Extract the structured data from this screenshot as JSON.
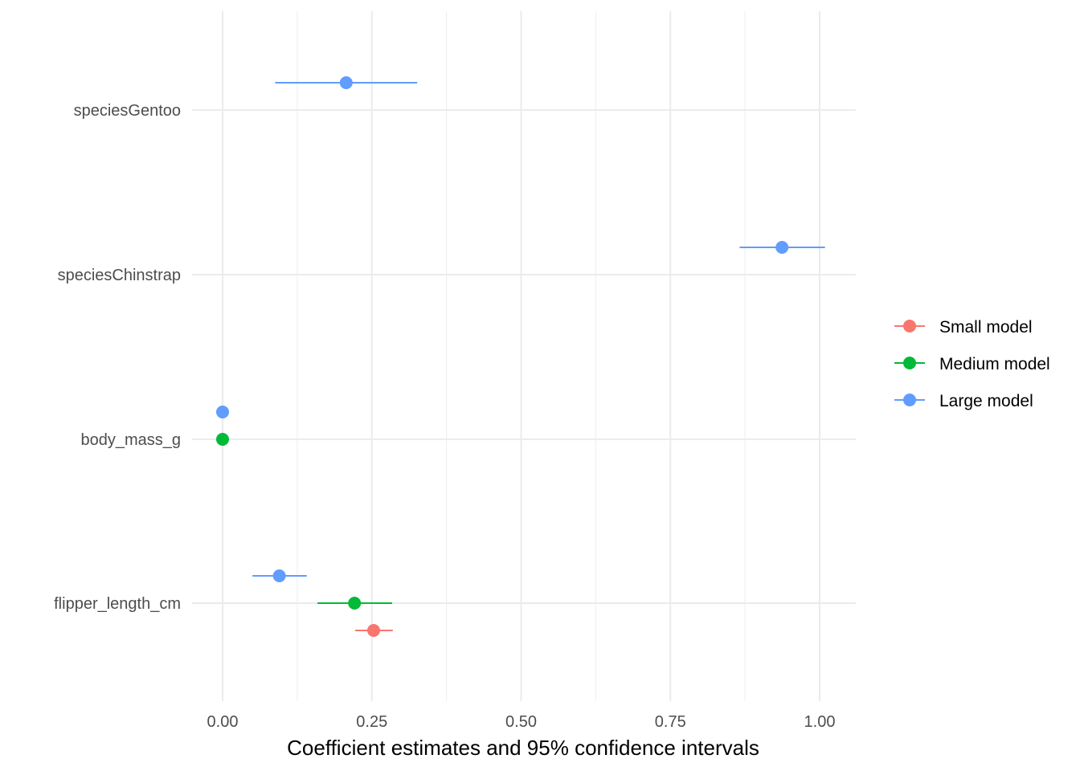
{
  "chart_data": {
    "type": "scatter",
    "subtype": "coefficient-plot",
    "xlabel": "Coefficient estimates and 95% confidence intervals",
    "ylabel": "",
    "xlim": [
      -0.05,
      1.06
    ],
    "x_ticks": [
      0.0,
      0.25,
      0.5,
      0.75,
      1.0
    ],
    "x_tick_labels": [
      "0.00",
      "0.25",
      "0.50",
      "0.75",
      "1.00"
    ],
    "categories": [
      "flipper_length_cm",
      "body_mass_g",
      "speciesChinstrap",
      "speciesGentoo"
    ],
    "grid": true,
    "legend_position": "right",
    "series": [
      {
        "name": "Small model",
        "color": "#F8766D",
        "points": [
          {
            "term": "flipper_length_cm",
            "estimate": 0.253,
            "low": 0.222,
            "high": 0.285
          }
        ]
      },
      {
        "name": "Medium model",
        "color": "#00BA38",
        "points": [
          {
            "term": "flipper_length_cm",
            "estimate": 0.221,
            "low": 0.159,
            "high": 0.284
          },
          {
            "term": "body_mass_g",
            "estimate": 0.0,
            "low": -0.001,
            "high": 0.001
          }
        ]
      },
      {
        "name": "Large model",
        "color": "#619CFF",
        "points": [
          {
            "term": "flipper_length_cm",
            "estimate": 0.095,
            "low": 0.05,
            "high": 0.141
          },
          {
            "term": "body_mass_g",
            "estimate": 0.0,
            "low": -0.001,
            "high": 0.001
          },
          {
            "term": "speciesChinstrap",
            "estimate": 0.937,
            "low": 0.866,
            "high": 1.009
          },
          {
            "term": "speciesGentoo",
            "estimate": 0.207,
            "low": 0.088,
            "high": 0.326
          }
        ]
      }
    ]
  }
}
